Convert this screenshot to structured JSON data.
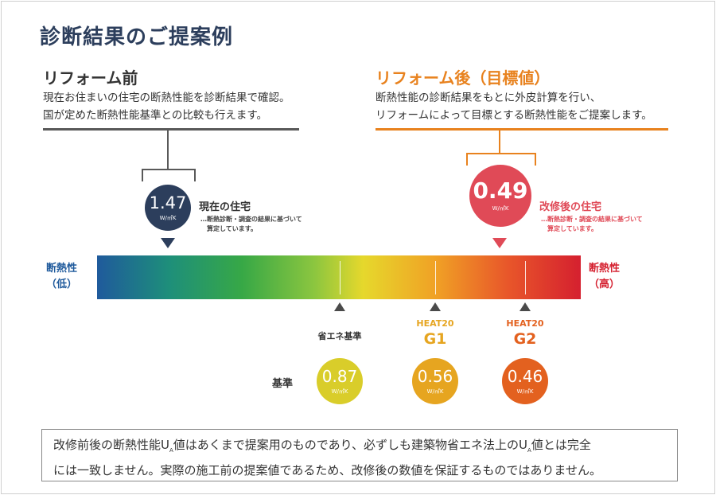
{
  "title": "診断結果のご提案例",
  "before": {
    "heading": "リフォーム前",
    "desc_line1": "現在お住まいの住宅の断熱性能を診断結果で確認。",
    "desc_line2": "国が定めた断熱性能基準との比較も行えます。",
    "value": "1.47",
    "unit": "W/㎡K",
    "label": "現在の住宅",
    "note_line1": "…断熱診断・調査の結果に基づいて",
    "note_line2": "算定しています。",
    "color": "#2c3e5c"
  },
  "after": {
    "heading": "リフォーム後（目標値）",
    "desc_line1": "断熱性能の診断結果をもとに外皮計算を行い、",
    "desc_line2": "リフォームによって目標とする断熱性能をご提案します。",
    "value": "0.49",
    "unit": "W/㎡K",
    "label": "改修後の住宅",
    "note_line1": "…断熱診断・調査の結果に基づいて",
    "note_line2": "算定しています。",
    "color": "#e04a57",
    "accent": "#e8821e"
  },
  "scale": {
    "left_line1": "断熱性",
    "left_line2": "（低）",
    "left_color": "#1f5a9c",
    "right_line1": "断熱性",
    "right_line2": "（高）",
    "right_color": "#d5202f"
  },
  "standards": {
    "row_label": "基準",
    "items": [
      {
        "name": "省エネ基準",
        "sub": "",
        "value": "0.87",
        "unit": "W/㎡K",
        "color": "#d9cd2a"
      },
      {
        "name": "HEAT20",
        "sub": "G1",
        "value": "0.56",
        "unit": "W/㎡K",
        "color": "#e6a520"
      },
      {
        "name": "HEAT20",
        "sub": "G2",
        "value": "0.46",
        "unit": "W/㎡K",
        "color": "#e3611f"
      }
    ]
  },
  "footer": {
    "t1": "改修前後の断熱性能U",
    "s1": "A",
    "t2": "値はあくまで提案用のものであり、必ずしも建築物省エネ法上のU",
    "s2": "A",
    "t3": "値とは完全",
    "line2": "には一致しません。実際の施工前の提案値であるため、改修後の数値を保証するものではありません。"
  }
}
